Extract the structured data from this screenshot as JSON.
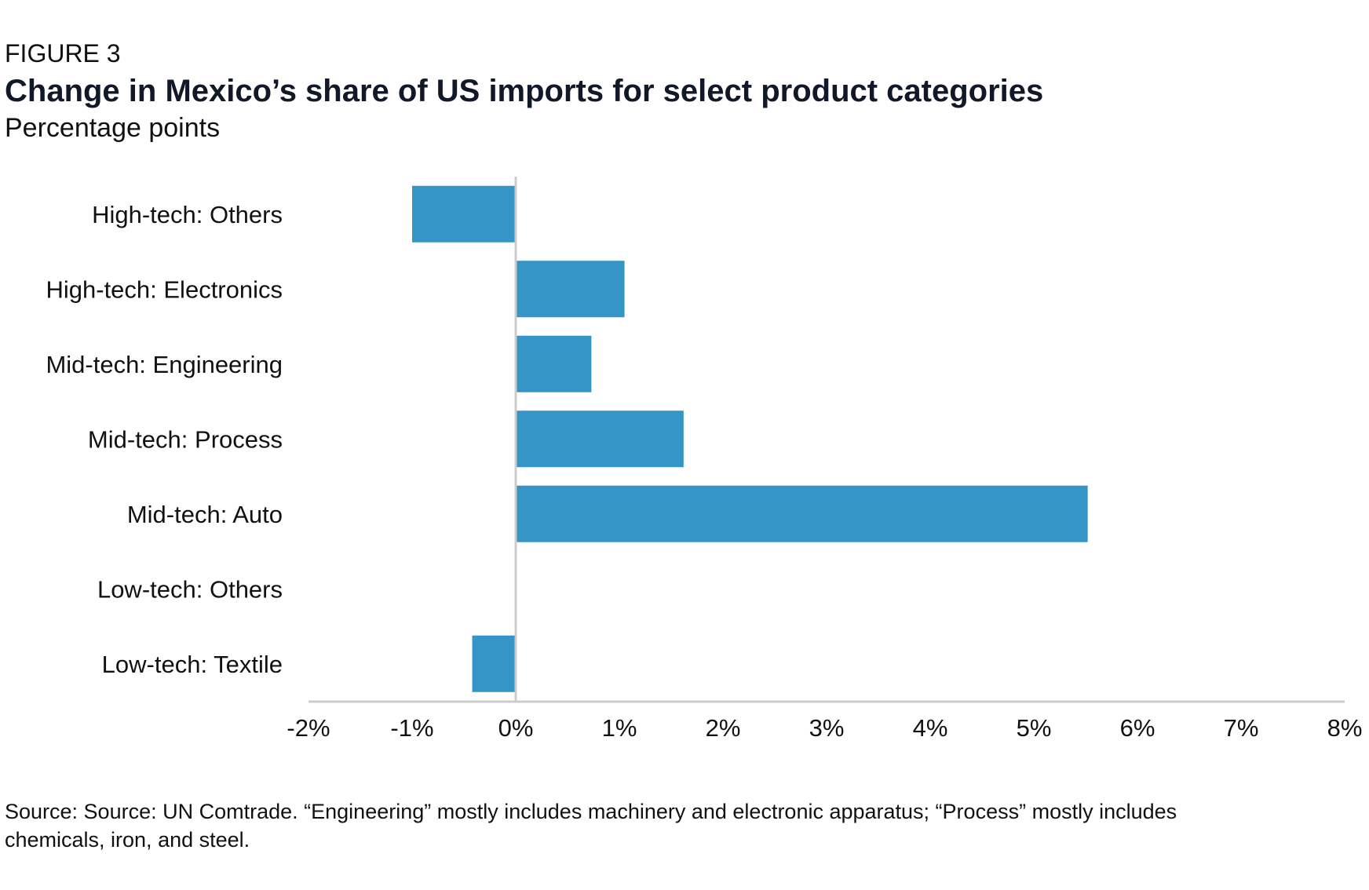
{
  "figure": {
    "label": "FIGURE 3",
    "title": "Change in Mexico’s share of US imports for select product categories",
    "subtitle": "Percentage points",
    "source": "Source: Source: UN Comtrade. “Engineering” mostly includes machinery and electronic apparatus; “Process” mostly includes chemicals, iron, and steel."
  },
  "chart_data": {
    "type": "bar",
    "orientation": "horizontal",
    "title": "Change in Mexico’s share of US imports for select product categories",
    "subtitle": "Percentage points",
    "categories": [
      "High-tech: Others",
      "High-tech: Electronics",
      "Mid-tech: Engineering",
      "Mid-tech: Process",
      "Mid-tech: Auto",
      "Low-tech: Others",
      "Low-tech: Textile"
    ],
    "values": [
      -1.0,
      1.05,
      0.73,
      1.62,
      5.52,
      0.0,
      -0.42
    ],
    "xlim": [
      -2,
      8
    ],
    "xticks": [
      -2,
      -1,
      0,
      1,
      2,
      3,
      4,
      5,
      6,
      7,
      8
    ],
    "tick_labels": [
      "-2%",
      "-1%",
      "0%",
      "1%",
      "2%",
      "3%",
      "4%",
      "5%",
      "6%",
      "7%",
      "8%"
    ],
    "xlabel": "",
    "ylabel": "",
    "grid": false,
    "bar_color": "#3595c6",
    "axis_color": "#cccccc"
  }
}
